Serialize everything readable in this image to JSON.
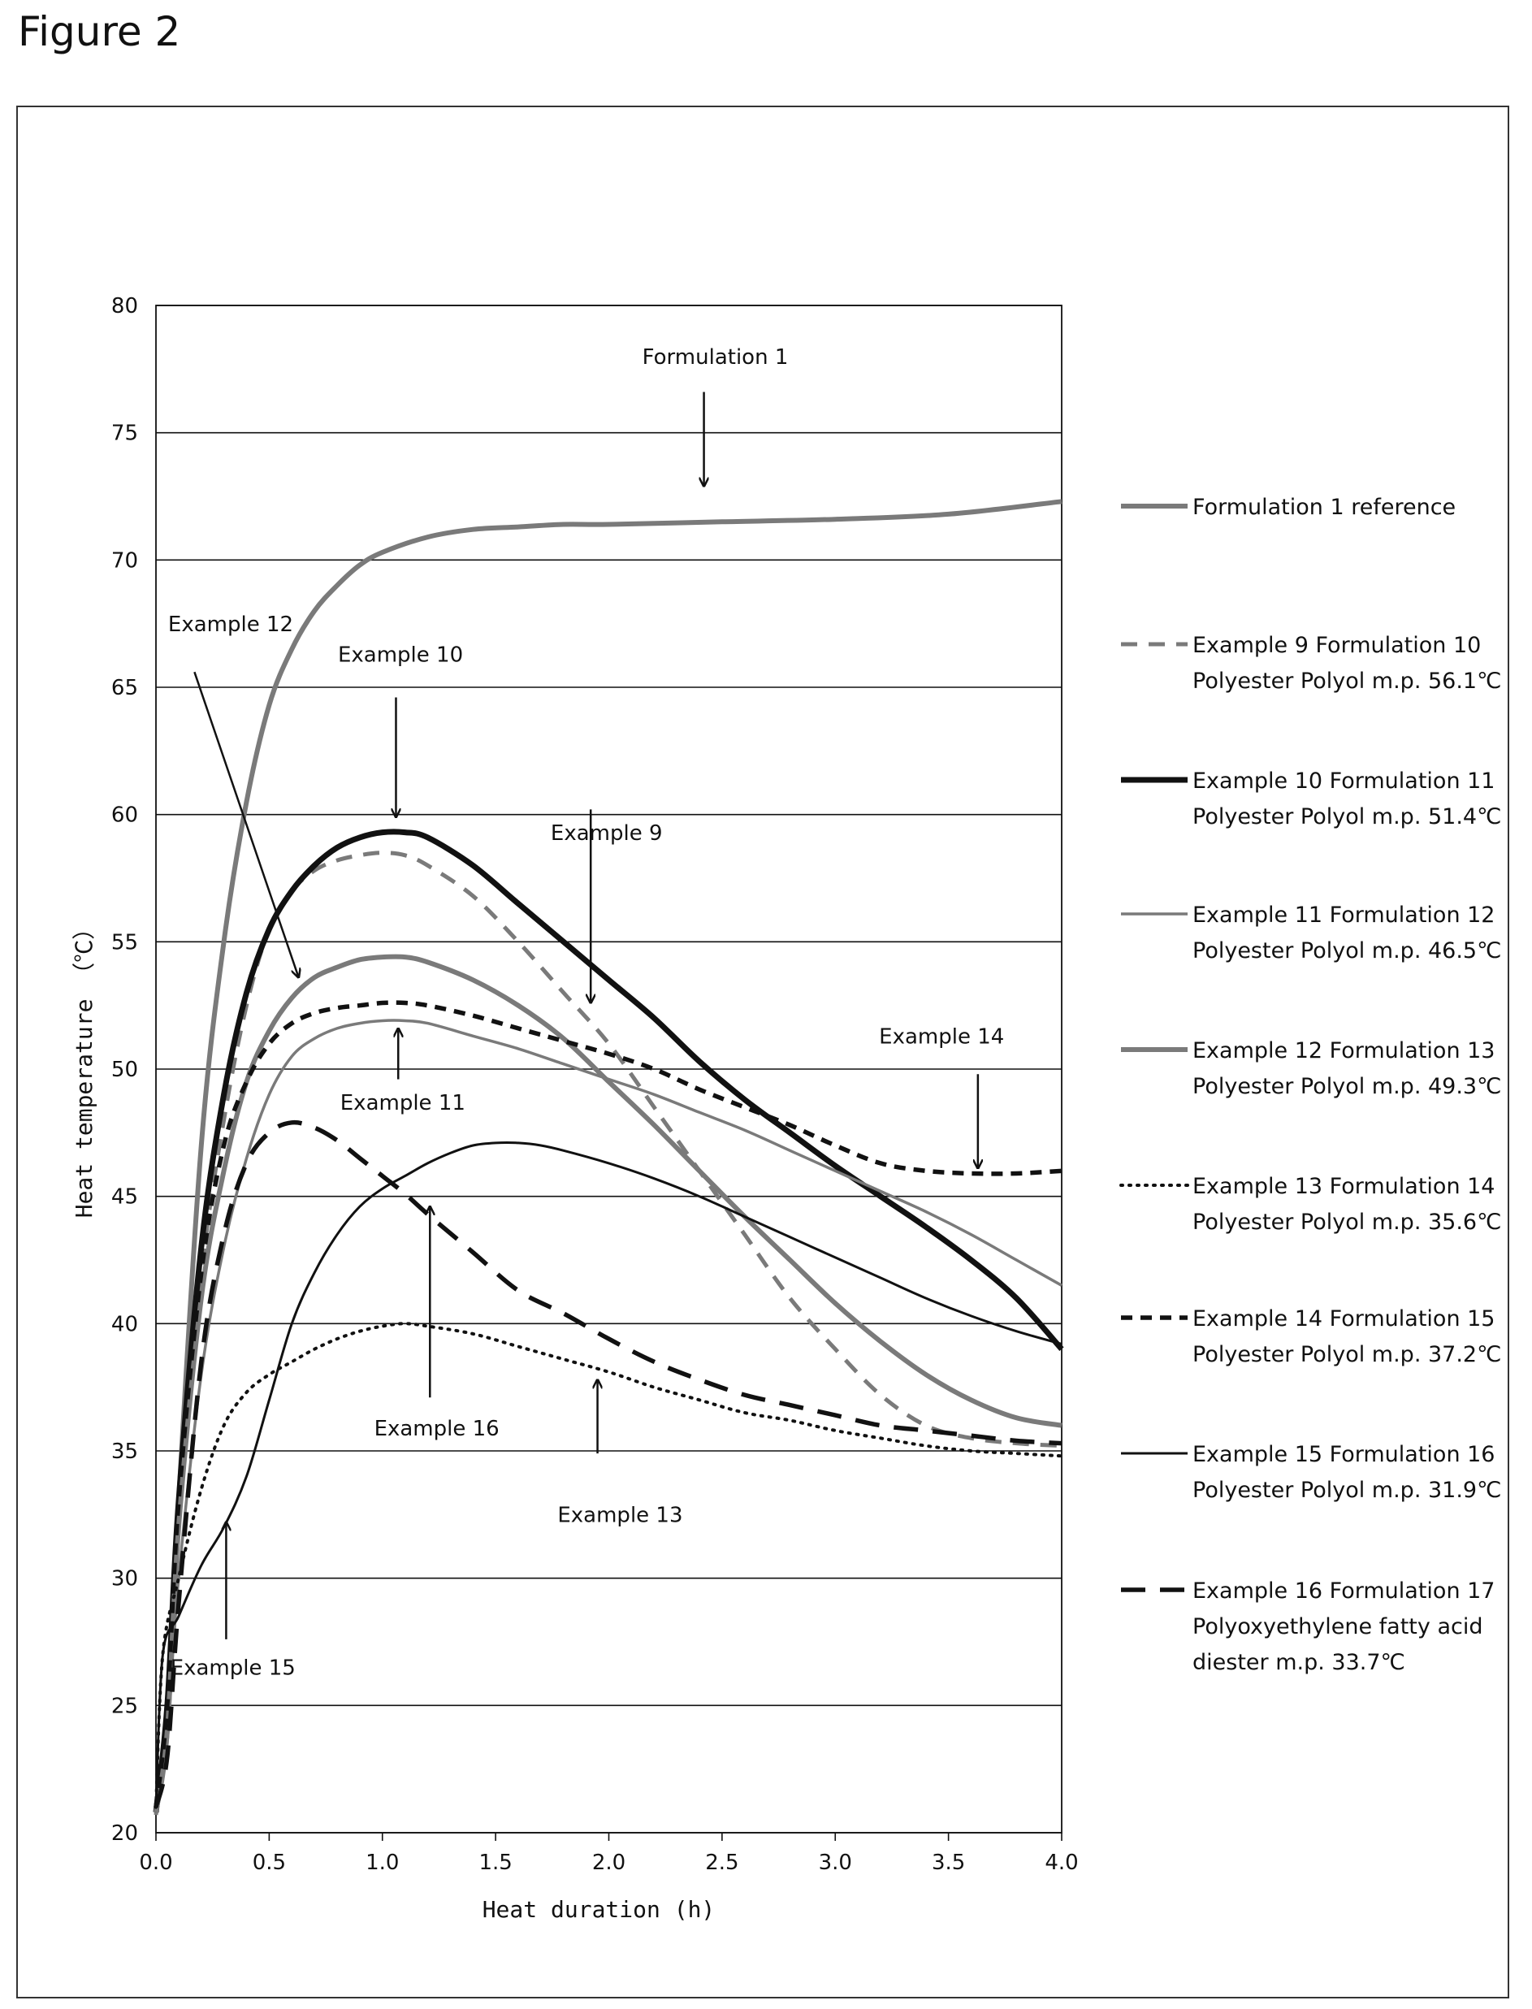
{
  "figure_title": "Figure 2",
  "colors": {
    "gray": "#7a7a7a",
    "black": "#111111"
  },
  "chart_data": {
    "type": "line",
    "title": "",
    "xlabel": "Heat duration (h)",
    "ylabel": "Heat temperature （℃）",
    "xlim": [
      0,
      4.0
    ],
    "ylim": [
      20,
      80
    ],
    "xticks": [
      0.0,
      0.5,
      1.0,
      1.5,
      2.0,
      2.5,
      3.0,
      3.5,
      4.0
    ],
    "xtick_labels": [
      "0.0",
      "0.5",
      "1.0",
      "1.5",
      "2.0",
      "2.5",
      "3.0",
      "3.5",
      "4.0"
    ],
    "yticks": [
      20,
      25,
      30,
      35,
      40,
      45,
      50,
      55,
      60,
      65,
      70,
      75,
      80
    ],
    "grid": "horizontal",
    "legend_position": "right",
    "series": [
      {
        "key": "f1",
        "legend": [
          "Formulation 1 reference"
        ],
        "style": "gray-thick",
        "points": [
          [
            0,
            20.8
          ],
          [
            0.05,
            24
          ],
          [
            0.1,
            33
          ],
          [
            0.2,
            47
          ],
          [
            0.3,
            55
          ],
          [
            0.4,
            60.5
          ],
          [
            0.5,
            64.3
          ],
          [
            0.6,
            66.5
          ],
          [
            0.7,
            68
          ],
          [
            0.8,
            69
          ],
          [
            0.9,
            69.8
          ],
          [
            1.0,
            70.3
          ],
          [
            1.2,
            70.9
          ],
          [
            1.4,
            71.2
          ],
          [
            1.6,
            71.3
          ],
          [
            1.8,
            71.4
          ],
          [
            2.0,
            71.4
          ],
          [
            2.5,
            71.5
          ],
          [
            3.0,
            71.6
          ],
          [
            3.5,
            71.8
          ],
          [
            4.0,
            72.3
          ]
        ]
      },
      {
        "key": "ex9",
        "legend": [
          "Example 9 Formulation 10",
          "Polyester Polyol m.p. 56.1℃"
        ],
        "style": "gray-dash",
        "points": [
          [
            0,
            20.7
          ],
          [
            0.05,
            25
          ],
          [
            0.1,
            33
          ],
          [
            0.2,
            42
          ],
          [
            0.3,
            48
          ],
          [
            0.4,
            52.5
          ],
          [
            0.5,
            55.5
          ],
          [
            0.6,
            57
          ],
          [
            0.7,
            57.8
          ],
          [
            0.8,
            58.2
          ],
          [
            0.9,
            58.4
          ],
          [
            1.0,
            58.5
          ],
          [
            1.1,
            58.4
          ],
          [
            1.2,
            58
          ],
          [
            1.4,
            56.8
          ],
          [
            1.6,
            55
          ],
          [
            1.8,
            53
          ],
          [
            2.0,
            51
          ],
          [
            2.2,
            48.5
          ],
          [
            2.4,
            46
          ],
          [
            2.6,
            43.5
          ],
          [
            2.8,
            41
          ],
          [
            3.0,
            39
          ],
          [
            3.2,
            37.2
          ],
          [
            3.4,
            36
          ],
          [
            3.6,
            35.5
          ],
          [
            3.8,
            35.3
          ],
          [
            4.0,
            35.2
          ]
        ]
      },
      {
        "key": "ex10",
        "legend": [
          "Example 10 Formulation 11",
          "Polyester Polyol m.p. 51.4℃"
        ],
        "style": "black-thick",
        "points": [
          [
            0,
            20.8
          ],
          [
            0.05,
            25
          ],
          [
            0.1,
            33
          ],
          [
            0.2,
            43
          ],
          [
            0.3,
            49
          ],
          [
            0.4,
            53
          ],
          [
            0.5,
            55.5
          ],
          [
            0.6,
            57
          ],
          [
            0.7,
            58
          ],
          [
            0.8,
            58.7
          ],
          [
            0.9,
            59.1
          ],
          [
            1.0,
            59.3
          ],
          [
            1.1,
            59.3
          ],
          [
            1.2,
            59.1
          ],
          [
            1.4,
            58
          ],
          [
            1.6,
            56.5
          ],
          [
            1.8,
            55
          ],
          [
            2.0,
            53.5
          ],
          [
            2.2,
            52
          ],
          [
            2.4,
            50.3
          ],
          [
            2.6,
            48.8
          ],
          [
            2.8,
            47.5
          ],
          [
            3.0,
            46.2
          ],
          [
            3.2,
            45
          ],
          [
            3.4,
            43.8
          ],
          [
            3.6,
            42.5
          ],
          [
            3.8,
            41
          ],
          [
            4.0,
            39
          ]
        ]
      },
      {
        "key": "ex11",
        "legend": [
          "Example 11 Formulation 12",
          "Polyester Polyol m.p. 46.5℃"
        ],
        "style": "gray-thin",
        "points": [
          [
            0,
            21
          ],
          [
            0.05,
            24
          ],
          [
            0.1,
            30
          ],
          [
            0.2,
            38
          ],
          [
            0.3,
            43
          ],
          [
            0.4,
            46.5
          ],
          [
            0.5,
            49
          ],
          [
            0.6,
            50.5
          ],
          [
            0.7,
            51.2
          ],
          [
            0.8,
            51.6
          ],
          [
            0.9,
            51.8
          ],
          [
            1.0,
            51.9
          ],
          [
            1.1,
            51.9
          ],
          [
            1.2,
            51.8
          ],
          [
            1.4,
            51.3
          ],
          [
            1.6,
            50.8
          ],
          [
            1.8,
            50.2
          ],
          [
            2.0,
            49.6
          ],
          [
            2.2,
            49
          ],
          [
            2.4,
            48.3
          ],
          [
            2.6,
            47.6
          ],
          [
            2.8,
            46.8
          ],
          [
            3.0,
            46
          ],
          [
            3.2,
            45.2
          ],
          [
            3.4,
            44.4
          ],
          [
            3.6,
            43.5
          ],
          [
            3.8,
            42.5
          ],
          [
            4.0,
            41.5
          ]
        ]
      },
      {
        "key": "ex12",
        "legend": [
          "Example 12 Formulation 13",
          "Polyester Polyol m.p. 49.3℃"
        ],
        "style": "gray-thick",
        "points": [
          [
            0,
            20.8
          ],
          [
            0.05,
            24
          ],
          [
            0.1,
            32
          ],
          [
            0.2,
            41
          ],
          [
            0.3,
            46
          ],
          [
            0.4,
            49.5
          ],
          [
            0.5,
            51.5
          ],
          [
            0.6,
            52.8
          ],
          [
            0.7,
            53.6
          ],
          [
            0.8,
            54
          ],
          [
            0.9,
            54.3
          ],
          [
            1.0,
            54.4
          ],
          [
            1.1,
            54.4
          ],
          [
            1.2,
            54.2
          ],
          [
            1.4,
            53.5
          ],
          [
            1.6,
            52.5
          ],
          [
            1.8,
            51.2
          ],
          [
            2.0,
            49.5
          ],
          [
            2.2,
            47.8
          ],
          [
            2.4,
            46
          ],
          [
            2.6,
            44.2
          ],
          [
            2.8,
            42.5
          ],
          [
            3.0,
            40.8
          ],
          [
            3.2,
            39.3
          ],
          [
            3.4,
            38
          ],
          [
            3.6,
            37
          ],
          [
            3.8,
            36.3
          ],
          [
            4.0,
            36
          ]
        ]
      },
      {
        "key": "ex13",
        "legend": [
          "Example 13 Formulation 14",
          "Polyester Polyol m.p. 35.6℃"
        ],
        "style": "black-dot",
        "points": [
          [
            0,
            21
          ],
          [
            0.03,
            27
          ],
          [
            0.1,
            30
          ],
          [
            0.2,
            33.5
          ],
          [
            0.3,
            36
          ],
          [
            0.4,
            37.3
          ],
          [
            0.5,
            38
          ],
          [
            0.6,
            38.5
          ],
          [
            0.7,
            39
          ],
          [
            0.8,
            39.4
          ],
          [
            0.9,
            39.7
          ],
          [
            1.0,
            39.9
          ],
          [
            1.1,
            40
          ],
          [
            1.2,
            39.9
          ],
          [
            1.4,
            39.6
          ],
          [
            1.6,
            39.1
          ],
          [
            1.8,
            38.6
          ],
          [
            2.0,
            38.1
          ],
          [
            2.2,
            37.5
          ],
          [
            2.4,
            37
          ],
          [
            2.6,
            36.5
          ],
          [
            2.8,
            36.2
          ],
          [
            3.0,
            35.8
          ],
          [
            3.2,
            35.5
          ],
          [
            3.4,
            35.2
          ],
          [
            3.6,
            35
          ],
          [
            3.8,
            34.9
          ],
          [
            4.0,
            34.8
          ]
        ]
      },
      {
        "key": "ex14",
        "legend": [
          "Example 14  Formulation 15",
          "Polyester Polyol m.p. 37.2℃"
        ],
        "style": "black-dash",
        "points": [
          [
            0,
            21
          ],
          [
            0.05,
            25
          ],
          [
            0.1,
            33
          ],
          [
            0.2,
            42
          ],
          [
            0.3,
            47
          ],
          [
            0.4,
            49.5
          ],
          [
            0.5,
            51
          ],
          [
            0.6,
            51.8
          ],
          [
            0.7,
            52.2
          ],
          [
            0.8,
            52.4
          ],
          [
            0.9,
            52.5
          ],
          [
            1.0,
            52.6
          ],
          [
            1.1,
            52.6
          ],
          [
            1.2,
            52.5
          ],
          [
            1.4,
            52.1
          ],
          [
            1.6,
            51.6
          ],
          [
            1.8,
            51.1
          ],
          [
            2.0,
            50.6
          ],
          [
            2.2,
            50
          ],
          [
            2.4,
            49.2
          ],
          [
            2.6,
            48.5
          ],
          [
            2.8,
            47.8
          ],
          [
            3.0,
            47
          ],
          [
            3.2,
            46.3
          ],
          [
            3.4,
            46
          ],
          [
            3.6,
            45.9
          ],
          [
            3.8,
            45.9
          ],
          [
            4.0,
            46
          ]
        ]
      },
      {
        "key": "ex15",
        "legend": [
          "Example 15 Formulation 16",
          "Polyester Polyol m.p. 31.9℃"
        ],
        "style": "black-thin",
        "points": [
          [
            0,
            21
          ],
          [
            0.03,
            27
          ],
          [
            0.1,
            28.5
          ],
          [
            0.2,
            30.5
          ],
          [
            0.3,
            32
          ],
          [
            0.4,
            34
          ],
          [
            0.5,
            37
          ],
          [
            0.6,
            40
          ],
          [
            0.7,
            42
          ],
          [
            0.8,
            43.5
          ],
          [
            0.9,
            44.6
          ],
          [
            1.0,
            45.3
          ],
          [
            1.1,
            45.8
          ],
          [
            1.2,
            46.3
          ],
          [
            1.3,
            46.7
          ],
          [
            1.4,
            47
          ],
          [
            1.5,
            47.1
          ],
          [
            1.6,
            47.1
          ],
          [
            1.7,
            47
          ],
          [
            1.8,
            46.8
          ],
          [
            2.0,
            46.3
          ],
          [
            2.2,
            45.7
          ],
          [
            2.4,
            45
          ],
          [
            2.6,
            44.2
          ],
          [
            2.8,
            43.4
          ],
          [
            3.0,
            42.6
          ],
          [
            3.2,
            41.8
          ],
          [
            3.4,
            41
          ],
          [
            3.6,
            40.3
          ],
          [
            3.8,
            39.7
          ],
          [
            4.0,
            39.2
          ]
        ]
      },
      {
        "key": "ex16",
        "legend": [
          "Example 16 Formulation 17",
          "Polyoxyethylene fatty acid",
          "diester m.p. 33.7℃"
        ],
        "style": "black-longdash",
        "points": [
          [
            0,
            21
          ],
          [
            0.05,
            23
          ],
          [
            0.1,
            29
          ],
          [
            0.2,
            38.5
          ],
          [
            0.3,
            43.5
          ],
          [
            0.4,
            46.3
          ],
          [
            0.5,
            47.5
          ],
          [
            0.6,
            47.9
          ],
          [
            0.7,
            47.7
          ],
          [
            0.8,
            47.2
          ],
          [
            0.9,
            46.5
          ],
          [
            1.0,
            45.8
          ],
          [
            1.1,
            45.1
          ],
          [
            1.2,
            44.3
          ],
          [
            1.4,
            42.8
          ],
          [
            1.6,
            41.3
          ],
          [
            1.8,
            40.4
          ],
          [
            2.0,
            39.4
          ],
          [
            2.2,
            38.5
          ],
          [
            2.4,
            37.8
          ],
          [
            2.6,
            37.2
          ],
          [
            2.8,
            36.8
          ],
          [
            3.0,
            36.4
          ],
          [
            3.2,
            36
          ],
          [
            3.4,
            35.8
          ],
          [
            3.6,
            35.6
          ],
          [
            3.8,
            35.4
          ],
          [
            4.0,
            35.3
          ]
        ]
      }
    ],
    "annotations": [
      {
        "text": "Formulation 1",
        "x": 2.47,
        "y": 77.7,
        "arrow_from": [
          2.42,
          76.6
        ],
        "arrow_to": [
          2.42,
          72.9
        ]
      },
      {
        "text": "Example 12",
        "x": 0.33,
        "y": 67.2,
        "arrow_from": [
          0.17,
          65.6
        ],
        "arrow_to": [
          0.63,
          53.6
        ]
      },
      {
        "text": "Example 10",
        "x": 1.08,
        "y": 66.0,
        "arrow_from": [
          1.06,
          64.6
        ],
        "arrow_to": [
          1.06,
          59.9
        ]
      },
      {
        "text": "Example 9",
        "x": 1.99,
        "y": 59.0,
        "arrow_from": [
          1.92,
          60.2
        ],
        "arrow_to": [
          1.92,
          52.6
        ]
      },
      {
        "text": "Example 14",
        "x": 3.47,
        "y": 51.0,
        "arrow_from": [
          3.63,
          49.8
        ],
        "arrow_to": [
          3.63,
          46.1
        ]
      },
      {
        "text": "Example 11",
        "x": 1.09,
        "y": 48.4,
        "arrow_from": [
          1.07,
          49.6
        ],
        "arrow_to": [
          1.07,
          51.6
        ]
      },
      {
        "text": "Example 16",
        "x": 1.24,
        "y": 35.6,
        "arrow_from": [
          1.21,
          37.1
        ],
        "arrow_to": [
          1.21,
          44.6
        ]
      },
      {
        "text": "Example 13",
        "x": 2.05,
        "y": 32.2,
        "arrow_from": [
          1.95,
          34.9
        ],
        "arrow_to": [
          1.95,
          37.8
        ]
      },
      {
        "text": "Example 15",
        "x": 0.34,
        "y": 26.2,
        "arrow_from": [
          0.31,
          27.6
        ],
        "arrow_to": [
          0.31,
          32.2
        ]
      }
    ]
  }
}
